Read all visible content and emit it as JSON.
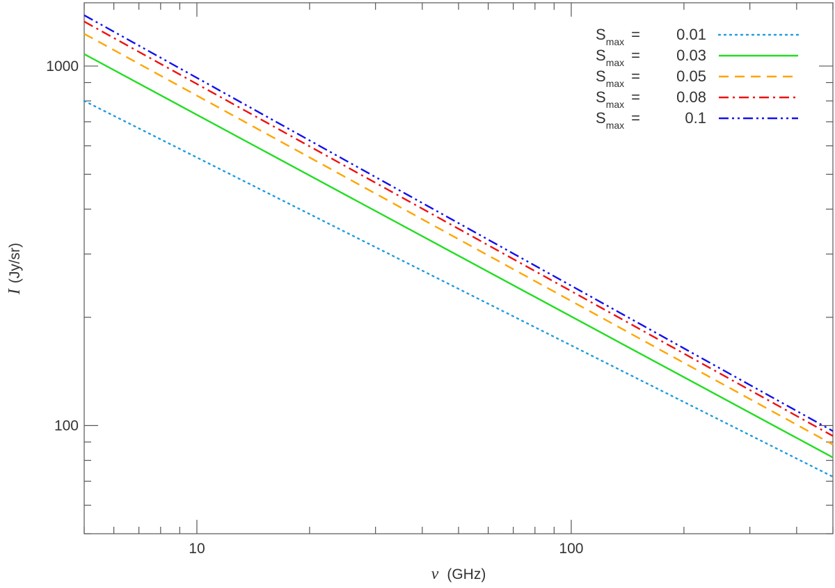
{
  "chart_data": {
    "type": "line",
    "xscale": "log",
    "yscale": "log",
    "xlim": [
      5,
      500
    ],
    "ylim": [
      50,
      1500
    ],
    "x_ticks_major": [
      10,
      100
    ],
    "x_tick_labels": [
      "10",
      "100"
    ],
    "y_ticks_major": [
      100,
      1000
    ],
    "y_tick_labels": [
      "100",
      "1000"
    ],
    "xlabel_symbol": "ν",
    "xlabel": "(GHz)",
    "ylabel_symbol": "I",
    "ylabel": "(Jy/sr)",
    "legend_position": "top-right",
    "grid": false,
    "series": [
      {
        "name": "S",
        "sub": "max",
        "eq": "=",
        "value": "0.01",
        "color": "#1E9BE0",
        "dash": "dotted",
        "x": [
          5,
          500
        ],
        "y": [
          800,
          72
        ]
      },
      {
        "name": "S",
        "sub": "max",
        "eq": "=",
        "value": "0.03",
        "color": "#22DD22",
        "dash": "solid",
        "x": [
          5,
          500
        ],
        "y": [
          1080,
          81.5
        ]
      },
      {
        "name": "S",
        "sub": "max",
        "eq": "=",
        "value": "0.05",
        "color": "#FFA500",
        "dash": "dashed",
        "x": [
          5,
          500
        ],
        "y": [
          1230,
          88.5
        ]
      },
      {
        "name": "S",
        "sub": "max",
        "eq": "=",
        "value": "0.08",
        "color": "#EE1111",
        "dash": "dashdot",
        "x": [
          5,
          500
        ],
        "y": [
          1330,
          93.5
        ]
      },
      {
        "name": "S",
        "sub": "max",
        "eq": "=",
        "value": "0.1",
        "color": "#1111EE",
        "dash": "dashdotdot",
        "x": [
          5,
          500
        ],
        "y": [
          1385,
          96.5
        ]
      }
    ]
  }
}
